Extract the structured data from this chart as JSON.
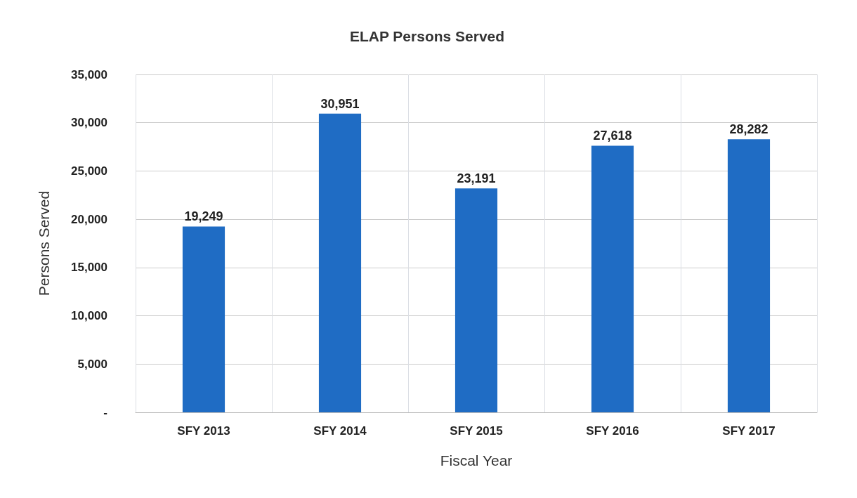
{
  "chart_data": {
    "type": "bar",
    "title": "ELAP Persons Served",
    "xlabel": "Fiscal Year",
    "ylabel": "Persons Served",
    "categories": [
      "SFY 2013",
      "SFY 2014",
      "SFY 2015",
      "SFY 2016",
      "SFY 2017"
    ],
    "values": [
      19249,
      30951,
      23191,
      27618,
      28282
    ],
    "value_labels": [
      "19,249",
      "30,951",
      "23,191",
      "27,618",
      "28,282"
    ],
    "color": "#1f6cc4",
    "ylim": [
      0,
      35000
    ],
    "yticks": [
      {
        "value": 0,
        "label": "-"
      },
      {
        "value": 5000,
        "label": "5,000"
      },
      {
        "value": 10000,
        "label": "10,000"
      },
      {
        "value": 15000,
        "label": "15,000"
      },
      {
        "value": 20000,
        "label": "20,000"
      },
      {
        "value": 25000,
        "label": "25,000"
      },
      {
        "value": 30000,
        "label": "30,000"
      },
      {
        "value": 35000,
        "label": "35,000"
      }
    ],
    "grid": true
  }
}
